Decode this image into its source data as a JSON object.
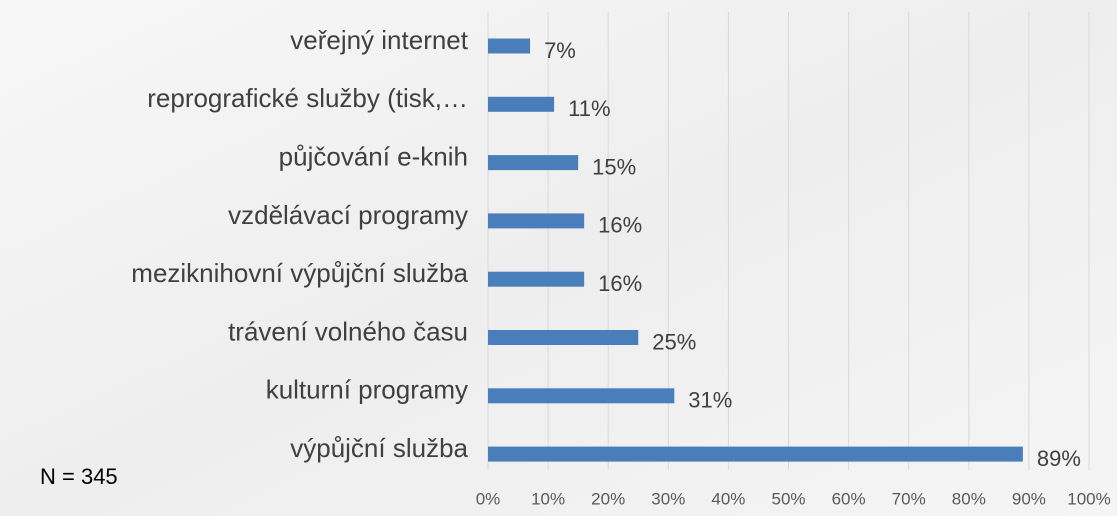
{
  "chart_data": {
    "type": "bar",
    "orientation": "horizontal",
    "categories": [
      "veřejný internet",
      "reprografické služby (tisk,…",
      "půjčování e-knih",
      "vzdělávací programy",
      "meziknihovní výpůjční služba",
      "trávení volného času",
      "kulturní programy",
      "výpůjční služba"
    ],
    "values": [
      7,
      11,
      15,
      16,
      16,
      25,
      31,
      89
    ],
    "value_labels": [
      "7%",
      "11%",
      "15%",
      "16%",
      "16%",
      "25%",
      "31%",
      "89%"
    ],
    "color": "#4a7ebb",
    "xlim": [
      0,
      100
    ],
    "xticks": [
      {
        "value": 0,
        "label": "0%"
      },
      {
        "value": 10,
        "label": "10%"
      },
      {
        "value": 20,
        "label": "20%"
      },
      {
        "value": 30,
        "label": "30%"
      },
      {
        "value": 40,
        "label": "40%"
      },
      {
        "value": 50,
        "label": "50%"
      },
      {
        "value": 60,
        "label": "60%"
      },
      {
        "value": 70,
        "label": "70%"
      },
      {
        "value": 80,
        "label": "80%"
      },
      {
        "value": 90,
        "label": "90%"
      },
      {
        "value": 100,
        "label": "100%"
      }
    ],
    "grid": true,
    "annotation": "N = 345"
  }
}
